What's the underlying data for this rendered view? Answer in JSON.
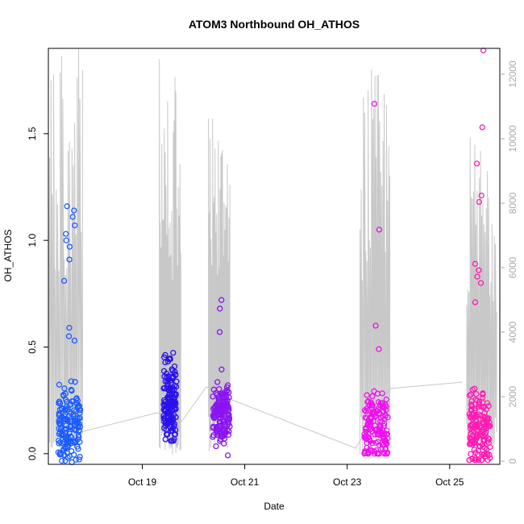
{
  "chart_data": {
    "type": "scatter",
    "title": "ATOM3 Northbound OH_ATHOS",
    "xlabel": "Date",
    "ylabel": "OH_ATHOS",
    "x_range": [
      "2016-10-17 04:00",
      "2016-10-25 23:30"
    ],
    "ylim": [
      -0.05,
      1.9
    ],
    "x_ticks": [
      {
        "date": "2016-10-19",
        "label": "Oct 19"
      },
      {
        "date": "2016-10-21",
        "label": "Oct 21"
      },
      {
        "date": "2016-10-23",
        "label": "Oct 23"
      },
      {
        "date": "2016-10-25",
        "label": "Oct 25"
      }
    ],
    "y_ticks": [
      0.0,
      0.5,
      1.0,
      1.5
    ],
    "y_tick_labels": [
      "0.0",
      "0.5",
      "1.0",
      "1.5"
    ],
    "y2_range": [
      -100,
      12800
    ],
    "y2_ticks": [
      0,
      2000,
      4000,
      6000,
      8000,
      10000,
      12000
    ],
    "y2_tick_labels": [
      "0",
      "2000",
      "4000",
      "6000",
      "8000",
      "10000",
      "12000"
    ],
    "grid": false,
    "legend": "none",
    "colors": {
      "clusters": [
        "#1a5cff",
        "#2a10ee",
        "#8a14f0",
        "#ee10ee",
        "#ff1ab4"
      ],
      "secondary_line": "#c8c8c8"
    },
    "series": [
      {
        "kind": "scatter",
        "clusters": [
          {
            "start": "2016-10-17 08:30",
            "end": "2016-10-17 19:00",
            "center": 0.13,
            "spread": 0.09,
            "max": 0.38,
            "min": -0.04,
            "outliers": [
              1.16,
              1.14,
              1.11,
              1.07,
              1.03,
              1.0,
              0.97,
              0.91,
              0.81,
              0.59,
              0.55,
              0.53
            ]
          },
          {
            "start": "2016-10-19 10:00",
            "end": "2016-10-19 16:00",
            "center": 0.25,
            "spread": 0.1,
            "max": 0.58,
            "min": 0.06,
            "outliers": []
          },
          {
            "start": "2016-10-20 09:00",
            "end": "2016-10-20 17:00",
            "center": 0.19,
            "spread": 0.08,
            "max": 0.46,
            "min": -0.04,
            "outliers": [
              0.72,
              0.68,
              0.57
            ]
          },
          {
            "start": "2016-10-23 08:00",
            "end": "2016-10-23 19:00",
            "center": 0.12,
            "spread": 0.08,
            "max": 0.52,
            "min": 0.0,
            "outliers": [
              1.64,
              1.05,
              0.6,
              0.49
            ]
          },
          {
            "start": "2016-10-25 09:00",
            "end": "2016-10-25 19:00",
            "center": 0.12,
            "spread": 0.08,
            "max": 0.55,
            "min": -0.03,
            "outliers": [
              1.89,
              1.53,
              1.36,
              1.21,
              1.18,
              0.89,
              0.86,
              0.83,
              0.8,
              0.71
            ]
          }
        ]
      },
      {
        "kind": "line",
        "axis": "right",
        "peaks": [
          {
            "start": "2016-10-17 04:00",
            "end": "2016-10-17 20:00",
            "max": 12800
          },
          {
            "start": "2016-10-19 08:00",
            "end": "2016-10-19 18:00",
            "max": 12500
          },
          {
            "start": "2016-10-20 07:00",
            "end": "2016-10-20 17:00",
            "max": 11600
          },
          {
            "start": "2016-10-23 06:00",
            "end": "2016-10-23 20:00",
            "max": 12200
          },
          {
            "start": "2016-10-25 08:00",
            "end": "2016-10-25 22:00",
            "max": 10200
          }
        ],
        "connectors": [
          {
            "x": "2016-10-17 19:00",
            "y": 900
          },
          {
            "x": "2016-10-19 07:00",
            "y": 1500
          },
          {
            "x": "2016-10-19 17:00",
            "y": 1100
          },
          {
            "x": "2016-10-20 06:00",
            "y": 2300
          },
          {
            "x": "2016-10-20 18:00",
            "y": 1900
          },
          {
            "x": "2016-10-23 04:00",
            "y": 400
          },
          {
            "x": "2016-10-23 20:00",
            "y": 2250
          },
          {
            "x": "2016-10-25 06:00",
            "y": 2450
          }
        ]
      }
    ]
  }
}
